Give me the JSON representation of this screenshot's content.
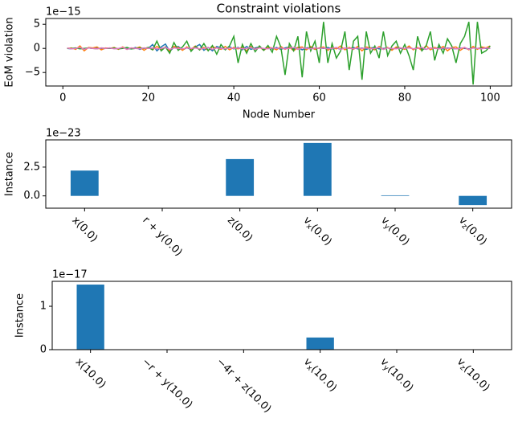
{
  "chart_data": [
    {
      "type": "line",
      "title": "Constraint violations",
      "xlabel": "Node Number",
      "ylabel": "EoM violation",
      "offset_label": "1e−15",
      "x": [
        1,
        2,
        3,
        4,
        5,
        6,
        7,
        8,
        9,
        10,
        11,
        12,
        13,
        14,
        15,
        16,
        17,
        18,
        19,
        20,
        21,
        22,
        23,
        24,
        25,
        26,
        27,
        28,
        29,
        30,
        31,
        32,
        33,
        34,
        35,
        36,
        37,
        38,
        39,
        40,
        41,
        42,
        43,
        44,
        45,
        46,
        47,
        48,
        49,
        50,
        51,
        52,
        53,
        54,
        55,
        56,
        57,
        58,
        59,
        60,
        61,
        62,
        63,
        64,
        65,
        66,
        67,
        68,
        69,
        70,
        71,
        72,
        73,
        74,
        75,
        76,
        77,
        78,
        79,
        80,
        81,
        82,
        83,
        84,
        85,
        86,
        87,
        88,
        89,
        90,
        91,
        92,
        93,
        94,
        95,
        96,
        97,
        98,
        99,
        100
      ],
      "series": [
        {
          "color": "#1f77b4",
          "values": [
            0,
            -0.1,
            0.1,
            0,
            -0.1,
            0.1,
            0,
            0.1,
            -0.1,
            0,
            0.1,
            0,
            -0.1,
            0.1,
            0,
            -0.1,
            0.2,
            -0.2,
            0.1,
            0,
            0.8,
            -0.5,
            0.3,
            0.9,
            -0.6,
            0.2,
            0.4,
            -0.3,
            0.1,
            -0.2,
            0.3,
            0.8,
            -0.4,
            0.2,
            -0.5,
            0.4,
            0.1,
            -0.2,
            0.3,
            -0.1,
            0.2,
            -0.3,
            0.4,
            -0.2,
            0.1,
            0.3,
            -0.2,
            0.1,
            -0.1,
            0.2,
            -0.2,
            0.1,
            0.3,
            -0.1,
            0.2,
            -0.3,
            0.1,
            0.2,
            -0.2,
            0.1,
            0,
            0.2,
            -0.1,
            0.1,
            -0.2,
            0.1,
            0,
            0.2,
            -0.1,
            0.1,
            -0.2,
            0.1,
            0.2,
            -0.1,
            0,
            0.1,
            -0.2,
            0.1,
            0,
            -0.1,
            0.2,
            -0.1,
            0.1,
            0,
            -0.2,
            0.1,
            0,
            0.2,
            -0.1,
            0.1,
            0,
            -0.1,
            0.1,
            0,
            -0.1,
            0.1,
            0,
            0.1,
            0,
            0
          ]
        },
        {
          "color": "#ff7f0e",
          "values": [
            0,
            0.1,
            -0.2,
            0.5,
            -0.5,
            0.2,
            0.1,
            0.3,
            -0.3,
            0.1,
            0,
            0.2,
            -0.2,
            0.3,
            -0.2,
            0.1,
            0,
            0.3,
            -0.4,
            0.2,
            -0.3,
            0.4,
            -0.2,
            0.3,
            -0.5,
            0.4,
            0.2,
            -0.4,
            0.3,
            -0.2,
            0.5,
            -0.3,
            0.2,
            -0.4,
            0.3,
            0.1,
            -0.2,
            0.4,
            -0.3,
            0.2,
            -0.1,
            0.3,
            -0.5,
            0.4,
            -0.2,
            0.3,
            -0.4,
            0.2,
            0.1,
            -0.3,
            0.4,
            -0.2,
            0.3,
            -0.5,
            0.2,
            0.3,
            -0.3,
            0.4,
            -0.2,
            0.1,
            0.3,
            -0.4,
            0.2,
            -0.1,
            0.5,
            -0.3,
            0.2,
            -0.2,
            0.4,
            -0.5,
            0.3,
            0.1,
            -0.3,
            0.4,
            -0.2,
            0.2,
            -0.4,
            0.3,
            0.1,
            -0.2,
            0.5,
            -0.3,
            0.2,
            -0.4,
            0.6,
            -0.3,
            0.2,
            -0.1,
            0.4,
            -0.5,
            0.2,
            0.3,
            -0.4,
            0.2,
            -0.3,
            0.4,
            -0.2,
            0.3,
            0.1,
            0.5
          ]
        },
        {
          "color": "#2ca02c",
          "values": [
            0,
            0,
            0.1,
            -0.1,
            0,
            0.1,
            0,
            -0.1,
            0.1,
            0,
            0,
            0.1,
            -0.1,
            0,
            0.2,
            -0.1,
            0,
            0.1,
            0,
            0.2,
            -0.3,
            1.5,
            -0.5,
            0.3,
            -1,
            1.2,
            -0.4,
            0.3,
            1.5,
            -0.6,
            0.4,
            -0.3,
            1,
            -0.5,
            0.6,
            -1.2,
            0.8,
            -0.3,
            0.5,
            2.5,
            -3,
            0.8,
            -1,
            1,
            -0.7,
            0.5,
            -0.4,
            0.6,
            -0.8,
            2.5,
            0.3,
            -5.5,
            1,
            -0.5,
            2.5,
            -6,
            3.5,
            -0.5,
            1.5,
            -3,
            5.5,
            -3,
            1,
            -2,
            -0.5,
            3.5,
            -4.5,
            1.5,
            2.5,
            -6.5,
            3.5,
            -1,
            0.5,
            -2,
            3.5,
            -1.5,
            0.5,
            1.5,
            -1,
            0.8,
            -1.5,
            -4.5,
            2.5,
            -0.5,
            0.5,
            3.5,
            -2.5,
            0.8,
            -1,
            2,
            0.5,
            -3,
            1,
            2.5,
            5.5,
            -7.5,
            5.5,
            -1,
            -0.5,
            0.5
          ]
        },
        {
          "color": "#e377c2",
          "values": [
            0.1,
            -0.1,
            0,
            0.2,
            -0.2,
            0.1,
            0,
            -0.1,
            0.1,
            0,
            0.1,
            -0.1,
            0,
            0.2,
            -0.2,
            0.1,
            0,
            -0.1,
            0.1,
            0,
            0.1,
            -0.1,
            0,
            0.2,
            -0.2,
            0.1,
            0,
            -0.1,
            0.1,
            0,
            0.1,
            -0.1,
            0,
            0.2,
            -0.2,
            0.1,
            0,
            -0.1,
            0.1,
            0,
            0.1,
            -0.1,
            0,
            0.2,
            -0.2,
            0.1,
            0,
            -0.1,
            0.1,
            0,
            0.1,
            -0.1,
            0,
            0.2,
            -0.2,
            0.1,
            0,
            -0.1,
            0.1,
            0,
            0.1,
            -0.1,
            0,
            0.2,
            -0.2,
            0.1,
            0,
            -0.1,
            0.1,
            0,
            0.1,
            -0.1,
            0,
            0.2,
            -0.2,
            0.1,
            0,
            -0.1,
            0.1,
            0,
            0.1,
            -0.1,
            0,
            0.2,
            -0.2,
            0.1,
            0,
            -0.1,
            0.1,
            0,
            0.1,
            -0.1,
            0,
            0.2,
            -0.2,
            0.1,
            0,
            -0.1,
            0.1,
            0
          ]
        }
      ],
      "xlim": [
        -4,
        105
      ],
      "xticks": [
        0,
        20,
        40,
        60,
        80,
        100
      ],
      "ylim": [
        -7.8,
        6.2
      ],
      "yticks": [
        {
          "value": -5,
          "label": "−5"
        },
        0,
        5
      ]
    },
    {
      "type": "bar",
      "ylabel": "Instance",
      "offset_label": "1e−23",
      "color": "#1f77b4",
      "categories": [
        "x(0.0)",
        "r + y(0.0)",
        "z(0.0)",
        "vx(0.0)",
        "vy(0.0)",
        "vz(0.0)"
      ],
      "values": [
        2.2,
        0,
        3.2,
        4.6,
        0.05,
        -0.8
      ],
      "ylim": [
        -1.07,
        4.87
      ],
      "yticks": [
        {
          "value": 0,
          "label": "0.0"
        },
        2.5
      ]
    },
    {
      "type": "bar",
      "ylabel": "Instance",
      "offset_label": "1e−17",
      "color": "#1f77b4",
      "categories": [
        "x(10.0)",
        "−r + y(10.0)",
        "−4r + z(10.0)",
        "vx(10.0)",
        "vy(10.0)",
        "vz(10.0)"
      ],
      "values": [
        1.5,
        0,
        0,
        0.28,
        0,
        0
      ],
      "ylim": [
        0,
        1.575
      ],
      "yticks": [
        0,
        1
      ]
    }
  ]
}
